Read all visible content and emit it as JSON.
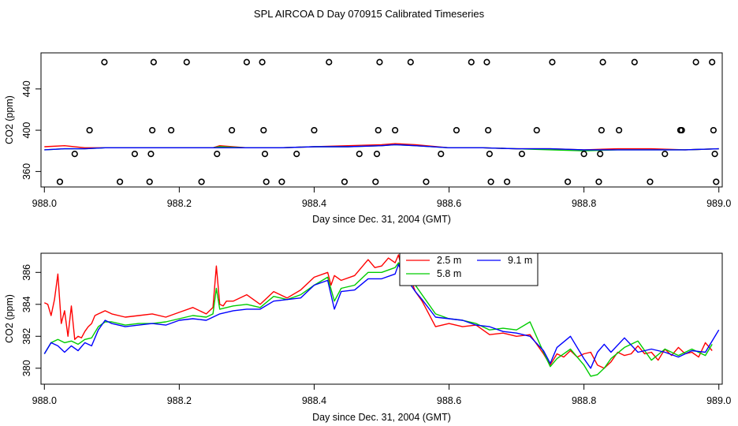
{
  "figure_title": "SPL AIRCOA D  Day 070915  Calibrated Timeseries",
  "colors": {
    "red": "#ff0000",
    "green": "#00cc00",
    "blue": "#0000ff",
    "black": "#000000"
  },
  "chart_data": [
    {
      "type": "scatter+line",
      "xlabel": "Day since Dec. 31, 2004 (GMT)",
      "ylabel": "CO2 (ppm)",
      "xlim": [
        987.995,
        989.005
      ],
      "ylim": [
        345,
        475
      ],
      "xticks": [
        988.0,
        988.2,
        988.4,
        988.6,
        988.8,
        989.0
      ],
      "xtick_labels": [
        "988.0",
        "988.2",
        "988.4",
        "988.6",
        "988.8",
        "989.0"
      ],
      "yticks": [
        360,
        400,
        440
      ],
      "ytick_labels": [
        "360",
        "400",
        "440"
      ],
      "points": [
        {
          "x": 988.023,
          "y": 350
        },
        {
          "x": 988.045,
          "y": 377
        },
        {
          "x": 988.067,
          "y": 400
        },
        {
          "x": 988.089,
          "y": 466
        },
        {
          "x": 988.112,
          "y": 350
        },
        {
          "x": 988.134,
          "y": 377
        },
        {
          "x": 988.156,
          "y": 350
        },
        {
          "x": 988.158,
          "y": 377
        },
        {
          "x": 988.16,
          "y": 400
        },
        {
          "x": 988.162,
          "y": 466
        },
        {
          "x": 988.188,
          "y": 400
        },
        {
          "x": 988.211,
          "y": 466
        },
        {
          "x": 988.233,
          "y": 350
        },
        {
          "x": 988.256,
          "y": 377
        },
        {
          "x": 988.278,
          "y": 400
        },
        {
          "x": 988.3,
          "y": 466
        },
        {
          "x": 988.323,
          "y": 466
        },
        {
          "x": 988.325,
          "y": 400
        },
        {
          "x": 988.327,
          "y": 377
        },
        {
          "x": 988.329,
          "y": 350
        },
        {
          "x": 988.352,
          "y": 350
        },
        {
          "x": 988.374,
          "y": 377
        },
        {
          "x": 988.4,
          "y": 400
        },
        {
          "x": 988.422,
          "y": 466
        },
        {
          "x": 988.445,
          "y": 350
        },
        {
          "x": 988.467,
          "y": 377
        },
        {
          "x": 988.491,
          "y": 350
        },
        {
          "x": 988.493,
          "y": 377
        },
        {
          "x": 988.495,
          "y": 400
        },
        {
          "x": 988.497,
          "y": 466
        },
        {
          "x": 988.52,
          "y": 400
        },
        {
          "x": 988.543,
          "y": 466
        },
        {
          "x": 988.566,
          "y": 350
        },
        {
          "x": 988.588,
          "y": 377
        },
        {
          "x": 988.611,
          "y": 400
        },
        {
          "x": 988.633,
          "y": 466
        },
        {
          "x": 988.656,
          "y": 466
        },
        {
          "x": 988.658,
          "y": 400
        },
        {
          "x": 988.66,
          "y": 377
        },
        {
          "x": 988.662,
          "y": 350
        },
        {
          "x": 988.686,
          "y": 350
        },
        {
          "x": 988.708,
          "y": 377
        },
        {
          "x": 988.73,
          "y": 400
        },
        {
          "x": 988.753,
          "y": 466
        },
        {
          "x": 988.776,
          "y": 350
        },
        {
          "x": 988.8,
          "y": 377
        },
        {
          "x": 988.822,
          "y": 350
        },
        {
          "x": 988.824,
          "y": 377
        },
        {
          "x": 988.826,
          "y": 400
        },
        {
          "x": 988.828,
          "y": 466
        },
        {
          "x": 988.852,
          "y": 400
        },
        {
          "x": 988.875,
          "y": 466
        },
        {
          "x": 988.898,
          "y": 350
        },
        {
          "x": 988.92,
          "y": 377
        },
        {
          "x": 988.943,
          "y": 400
        },
        {
          "x": 988.945,
          "y": 400
        },
        {
          "x": 988.966,
          "y": 466
        },
        {
          "x": 988.99,
          "y": 466
        },
        {
          "x": 988.992,
          "y": 400
        },
        {
          "x": 988.994,
          "y": 377
        },
        {
          "x": 988.996,
          "y": 350
        }
      ],
      "series": [
        {
          "name": "2.5 m",
          "color": "red",
          "x": [
            988.0,
            988.03,
            988.06,
            988.09,
            988.12,
            988.15,
            988.2,
            988.25,
            988.26,
            988.3,
            988.35,
            988.4,
            988.45,
            988.5,
            988.52,
            988.55,
            988.6,
            988.65,
            988.7,
            988.75,
            988.8,
            988.85,
            988.9,
            988.95,
            989.0
          ],
          "values": [
            384,
            385,
            383,
            383,
            383,
            383,
            383,
            383,
            385,
            383,
            383,
            384,
            385,
            386,
            387,
            386,
            383,
            383,
            382,
            382,
            381,
            382,
            382,
            381,
            382
          ]
        },
        {
          "name": "5.8 m",
          "color": "green",
          "x": [
            988.0,
            988.03,
            988.06,
            988.09,
            988.12,
            988.15,
            988.2,
            988.25,
            988.26,
            988.3,
            988.35,
            988.4,
            988.45,
            988.5,
            988.52,
            988.55,
            988.6,
            988.65,
            988.7,
            988.75,
            988.8,
            988.85,
            988.9,
            988.95,
            989.0
          ],
          "values": [
            381,
            382,
            382,
            383,
            383,
            383,
            383,
            383,
            384,
            383,
            383,
            384,
            384,
            385,
            386,
            385,
            383,
            383,
            382,
            381,
            380,
            381,
            381,
            381,
            382
          ]
        },
        {
          "name": "9.1 m",
          "color": "blue",
          "x": [
            988.0,
            988.03,
            988.06,
            988.09,
            988.12,
            988.15,
            988.2,
            988.25,
            988.26,
            988.3,
            988.35,
            988.4,
            988.45,
            988.5,
            988.52,
            988.55,
            988.6,
            988.65,
            988.7,
            988.75,
            988.8,
            988.85,
            988.9,
            988.95,
            989.0
          ],
          "values": [
            381,
            382,
            382,
            383,
            383,
            383,
            383,
            383,
            383,
            383,
            383,
            384,
            384,
            385,
            386,
            385,
            383,
            383,
            382,
            382,
            381,
            381,
            381,
            381,
            382
          ]
        }
      ]
    },
    {
      "type": "line",
      "xlabel": "Day since Dec. 31, 2004 (GMT)",
      "ylabel": "CO2 (ppm)",
      "xlim": [
        987.995,
        989.005
      ],
      "ylim": [
        379.0,
        387.2
      ],
      "xticks": [
        988.0,
        988.2,
        988.4,
        988.6,
        988.8,
        989.0
      ],
      "xtick_labels": [
        "988.0",
        "988.2",
        "988.4",
        "988.6",
        "988.8",
        "989.0"
      ],
      "yticks": [
        380,
        382,
        384,
        386
      ],
      "ytick_labels": [
        "380",
        "382",
        "384",
        "386"
      ],
      "legend": {
        "position": "top-center",
        "entries": [
          {
            "label": "2.5 m",
            "color": "red"
          },
          {
            "label": "9.1 m",
            "color": "blue"
          },
          {
            "label": "5.8 m",
            "color": "green"
          }
        ]
      },
      "series": [
        {
          "name": "2.5 m",
          "color": "red",
          "x": [
            988.0,
            988.005,
            988.01,
            988.015,
            988.02,
            988.025,
            988.03,
            988.035,
            988.04,
            988.045,
            988.05,
            988.055,
            988.06,
            988.065,
            988.07,
            988.075,
            988.08,
            988.09,
            988.1,
            988.12,
            988.14,
            988.16,
            988.18,
            988.2,
            988.22,
            988.24,
            988.25,
            988.255,
            988.26,
            988.265,
            988.27,
            988.28,
            988.3,
            988.32,
            988.34,
            988.36,
            988.38,
            988.4,
            988.42,
            988.425,
            988.43,
            988.44,
            988.46,
            988.48,
            988.49,
            988.5,
            988.51,
            988.52,
            988.525,
            988.53,
            988.535,
            988.54,
            988.55,
            988.56,
            988.58,
            988.6,
            988.62,
            988.64,
            988.66,
            988.68,
            988.7,
            988.72,
            988.74,
            988.75,
            988.76,
            988.77,
            988.78,
            988.79,
            988.8,
            988.81,
            988.82,
            988.83,
            988.84,
            988.85,
            988.86,
            988.87,
            988.88,
            988.89,
            988.9,
            988.91,
            988.92,
            988.93,
            988.94,
            988.95,
            988.96,
            988.97,
            988.98,
            988.99
          ],
          "values": [
            384.1,
            384.0,
            383.3,
            384.3,
            385.9,
            382.8,
            383.6,
            382.0,
            383.9,
            381.8,
            382.0,
            381.9,
            382.3,
            382.6,
            382.8,
            383.3,
            383.4,
            383.6,
            383.4,
            383.2,
            383.3,
            383.4,
            383.2,
            383.5,
            383.8,
            383.4,
            383.8,
            386.4,
            384.0,
            383.9,
            384.2,
            384.2,
            384.6,
            384.0,
            384.8,
            384.4,
            384.9,
            385.7,
            386.0,
            385.2,
            385.8,
            385.5,
            385.8,
            386.8,
            386.3,
            386.4,
            386.9,
            386.6,
            387.1,
            386.2,
            386.8,
            385.9,
            384.8,
            384.2,
            382.6,
            382.8,
            382.6,
            382.7,
            382.1,
            382.2,
            382.0,
            382.1,
            380.9,
            380.2,
            380.9,
            380.7,
            381.1,
            380.7,
            380.9,
            381.0,
            380.2,
            380.0,
            380.4,
            381.0,
            380.8,
            380.9,
            381.4,
            380.9,
            381.0,
            380.5,
            381.2,
            380.8,
            381.3,
            380.9,
            381.0,
            380.7,
            381.6,
            381.1
          ]
        },
        {
          "name": "5.8 m",
          "color": "green",
          "x": [
            988.0,
            988.01,
            988.02,
            988.03,
            988.04,
            988.05,
            988.06,
            988.07,
            988.08,
            988.09,
            988.1,
            988.12,
            988.14,
            988.16,
            988.18,
            988.2,
            988.22,
            988.24,
            988.25,
            988.255,
            988.26,
            988.28,
            988.3,
            988.32,
            988.34,
            988.36,
            988.38,
            988.4,
            988.42,
            988.43,
            988.44,
            988.46,
            988.48,
            988.5,
            988.52,
            988.525,
            988.53,
            988.54,
            988.55,
            988.56,
            988.58,
            988.6,
            988.62,
            988.64,
            988.66,
            988.68,
            988.7,
            988.72,
            988.74,
            988.75,
            988.76,
            988.78,
            988.8,
            988.81,
            988.82,
            988.83,
            988.84,
            988.86,
            988.88,
            988.9,
            988.92,
            988.94,
            988.96,
            988.98,
            988.99
          ],
          "values": [
            380.9,
            381.6,
            381.8,
            381.6,
            381.7,
            381.5,
            381.8,
            381.9,
            382.6,
            382.9,
            382.9,
            382.7,
            382.8,
            382.8,
            382.9,
            383.1,
            383.3,
            383.2,
            383.4,
            385.0,
            383.7,
            383.9,
            384.0,
            383.8,
            384.5,
            384.3,
            384.6,
            385.2,
            385.7,
            384.2,
            385.0,
            385.2,
            386.0,
            386.0,
            386.3,
            386.6,
            386.3,
            385.8,
            385.2,
            384.6,
            383.4,
            383.1,
            383.0,
            382.8,
            382.4,
            382.5,
            382.4,
            382.9,
            381.0,
            380.1,
            380.6,
            381.2,
            380.2,
            379.5,
            379.6,
            380.0,
            380.6,
            381.3,
            381.7,
            380.5,
            381.2,
            380.8,
            381.2,
            380.8,
            381.5
          ]
        },
        {
          "name": "9.1 m",
          "color": "blue",
          "x": [
            988.0,
            988.01,
            988.02,
            988.03,
            988.04,
            988.05,
            988.06,
            988.07,
            988.08,
            988.09,
            988.1,
            988.12,
            988.14,
            988.16,
            988.18,
            988.2,
            988.22,
            988.24,
            988.25,
            988.26,
            988.28,
            988.3,
            988.32,
            988.34,
            988.36,
            988.38,
            988.4,
            988.42,
            988.43,
            988.44,
            988.46,
            988.48,
            988.5,
            988.52,
            988.525,
            988.53,
            988.54,
            988.55,
            988.56,
            988.58,
            988.6,
            988.62,
            988.64,
            988.66,
            988.68,
            988.7,
            988.72,
            988.74,
            988.75,
            988.76,
            988.78,
            988.8,
            988.81,
            988.82,
            988.83,
            988.84,
            988.86,
            988.88,
            988.9,
            988.92,
            988.94,
            988.96,
            988.98,
            988.99,
            989.0
          ],
          "values": [
            380.9,
            381.6,
            381.4,
            381.0,
            381.4,
            381.1,
            381.6,
            381.4,
            382.4,
            383.0,
            382.8,
            382.6,
            382.7,
            382.8,
            382.7,
            383.0,
            383.1,
            383.0,
            383.2,
            383.4,
            383.6,
            383.7,
            383.7,
            384.2,
            384.3,
            384.4,
            385.2,
            385.5,
            383.7,
            384.8,
            384.9,
            385.6,
            385.6,
            385.9,
            386.5,
            386.0,
            385.4,
            384.8,
            384.3,
            383.2,
            383.1,
            383.0,
            382.7,
            382.6,
            382.3,
            382.2,
            382.0,
            381.1,
            380.3,
            381.3,
            382.0,
            380.6,
            380.0,
            381.0,
            381.5,
            381.0,
            381.9,
            381.0,
            381.2,
            381.0,
            380.7,
            381.1,
            381.0,
            381.7,
            382.4
          ]
        }
      ]
    }
  ]
}
